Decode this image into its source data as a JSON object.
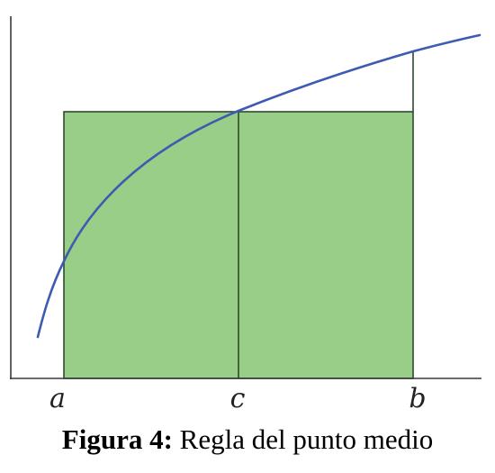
{
  "figure": {
    "points": {
      "a": "a",
      "c": "c",
      "b": "b"
    },
    "colors": {
      "rectangle_fill": "#99ce88",
      "rectangle_stroke": "#2d4a2d",
      "curve": "#3d5bb0",
      "axis": "#3a3a3a"
    }
  },
  "caption": {
    "label": "Figura 4:",
    "text": "Regla del punto medio"
  }
}
